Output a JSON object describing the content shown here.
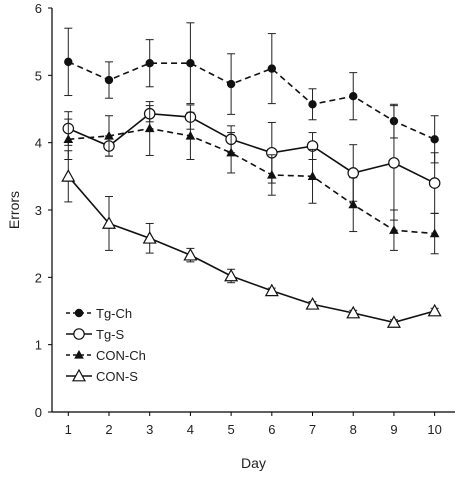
{
  "chart_data": {
    "type": "line",
    "xlabel": "Day",
    "ylabel": "Errors",
    "x": [
      1,
      2,
      3,
      4,
      5,
      6,
      7,
      8,
      9,
      10
    ],
    "xlim": [
      0.6,
      10.5
    ],
    "ylim": [
      0,
      6
    ],
    "yticks": [
      0,
      1,
      2,
      3,
      4,
      5,
      6
    ],
    "grid": false,
    "legend_position": "bottom-left",
    "series": [
      {
        "name": "Tg-Ch",
        "line": "dashed",
        "marker": "filled-circle",
        "values": [
          5.2,
          4.93,
          5.18,
          5.18,
          4.87,
          5.1,
          4.57,
          4.69,
          4.32,
          4.05
        ],
        "error": [
          0.5,
          0.27,
          0.35,
          0.6,
          0.45,
          0.52,
          0.23,
          0.35,
          0.25,
          0.35
        ]
      },
      {
        "name": "Tg-S",
        "line": "solid",
        "marker": "open-circle",
        "values": [
          4.21,
          3.95,
          4.43,
          4.38,
          4.05,
          3.85,
          3.95,
          3.55,
          3.7,
          3.4
        ],
        "error": [
          0.25,
          0.15,
          0.12,
          0.18,
          0.2,
          0.45,
          0.2,
          0.42,
          0.85,
          0.45
        ]
      },
      {
        "name": "CON-Ch",
        "line": "dashed",
        "marker": "filled-triangle",
        "values": [
          4.05,
          4.1,
          4.21,
          4.1,
          3.85,
          3.52,
          3.5,
          3.08,
          2.7,
          2.65
        ],
        "error": [
          0.3,
          0.3,
          0.4,
          0.35,
          0.3,
          0.3,
          0.4,
          0.4,
          0.3,
          0.3
        ]
      },
      {
        "name": "CON-S",
        "line": "solid",
        "marker": "open-triangle",
        "values": [
          3.5,
          2.8,
          2.58,
          2.33,
          2.02,
          1.8,
          1.6,
          1.47,
          1.33,
          1.5
        ],
        "error": [
          0.38,
          0.4,
          0.22,
          0.1,
          0.1,
          0.04,
          0.04,
          0.04,
          0.04,
          0.04
        ]
      }
    ]
  }
}
